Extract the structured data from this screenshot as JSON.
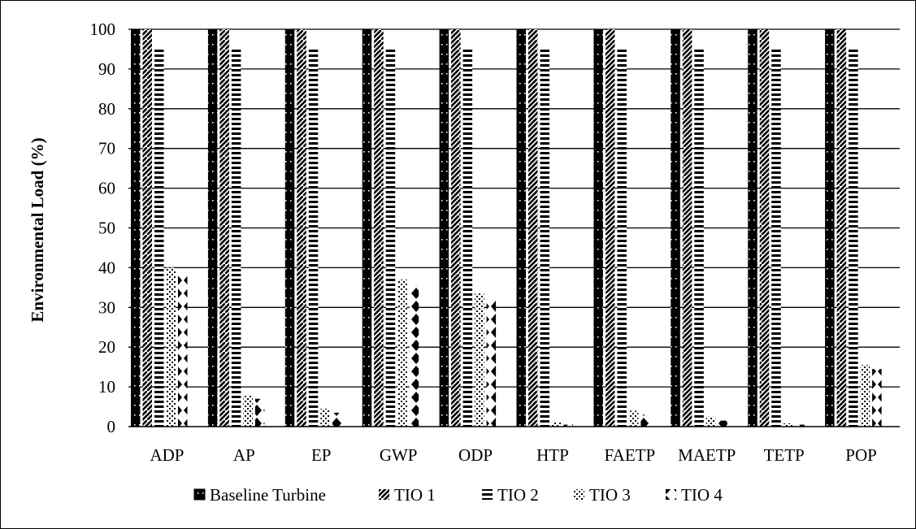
{
  "chart_data": {
    "type": "bar",
    "ylabel": "Environmental Load (%)",
    "xlabel": "",
    "ylim": [
      0,
      100
    ],
    "yticks": [
      0,
      10,
      20,
      30,
      40,
      50,
      60,
      70,
      80,
      90,
      100
    ],
    "grid": true,
    "legend_position": "bottom",
    "categories": [
      "ADP",
      "AP",
      "EP",
      "GWP",
      "ODP",
      "HTP",
      "FAETP",
      "MAETP",
      "TETP",
      "POP"
    ],
    "series": [
      {
        "name": "Baseline Turbine",
        "pattern": "solid-dots",
        "values": [
          100,
          100,
          100,
          100,
          100,
          100,
          100,
          100,
          100,
          100
        ]
      },
      {
        "name": "TIO 1",
        "pattern": "diagonal",
        "values": [
          100,
          100,
          100,
          100,
          100,
          100,
          100,
          100,
          100,
          100
        ]
      },
      {
        "name": "TIO 2",
        "pattern": "horizontal",
        "values": [
          95.5,
          95.5,
          95.5,
          95.5,
          95.5,
          95.5,
          95.5,
          95.5,
          95.5,
          95.5
        ]
      },
      {
        "name": "TIO 3",
        "pattern": "dotted",
        "values": [
          40,
          8,
          4.5,
          37,
          33.5,
          1,
          4,
          2.5,
          0.8,
          15.5
        ]
      },
      {
        "name": "TIO 4",
        "pattern": "diamonds",
        "values": [
          38,
          7,
          3.5,
          35.5,
          32,
          0.5,
          3,
          1.5,
          0.5,
          14.5
        ]
      }
    ]
  }
}
